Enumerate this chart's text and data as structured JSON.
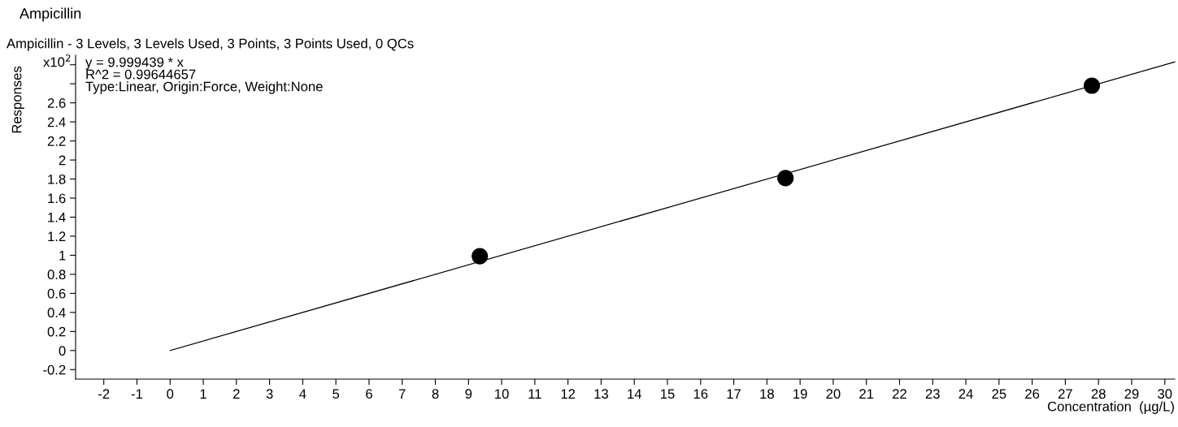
{
  "chart_data": {
    "type": "scatter",
    "title": "Ampicillin",
    "subtitle": "Ampicillin - 3 Levels, 3 Levels Used, 3 Points, 3 Points Used, 0 QCs",
    "xlabel": "Concentration  (µg/L)",
    "ylabel": "Responses",
    "annotations": [
      "x10$^{2}$",
      "y = 9.999439 * x",
      "R^2 = 0.99644657",
      "Type:Linear, Origin:Force, Weight:None"
    ],
    "series": [
      {
        "color": "#000000",
        "marker": "circle",
        "x": [
          9.34,
          18.56,
          27.8
        ],
        "values": [
          0.99,
          1.81,
          2.78
        ]
      },
      {
        "type": "line",
        "color": "#000000",
        "marker": "none",
        "line_style": "solid",
        "x": [
          0,
          30.3
        ],
        "values": [
          0,
          3.03
        ]
      }
    ],
    "xlim": [
      -2.85,
      30.3
    ],
    "xticks": [
      -2,
      -1,
      0,
      1,
      2,
      3,
      4,
      5,
      6,
      7,
      8,
      9,
      10,
      11,
      12,
      13,
      14,
      15,
      16,
      17,
      18,
      19,
      20,
      21,
      22,
      23,
      24,
      25,
      26,
      27,
      28,
      29,
      30
    ],
    "ylim": [
      -0.3,
      3.1
    ],
    "yticks": [
      -0.2,
      0,
      0.2,
      0.4,
      0.6,
      0.8,
      1,
      1.2,
      1.4,
      1.6,
      1.8,
      2,
      2.2,
      2.4,
      2.6,
      {
        "value": 2.8,
        "label": null
      },
      {
        "value": 3,
        "label": null
      }
    ],
    "grid": false,
    "legend": false
  }
}
